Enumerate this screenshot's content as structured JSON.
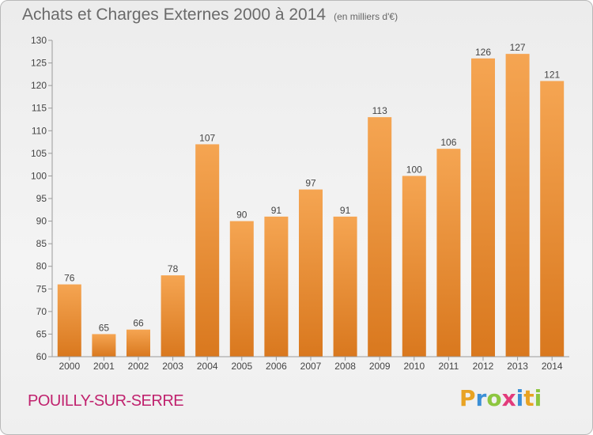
{
  "header": {
    "title": "Achats et Charges Externes 2000 à 2014",
    "subtitle": "(en milliers d'€)"
  },
  "footer": {
    "commune": "POUILLY-SUR-SERRE",
    "logo_letters": [
      "P",
      "r",
      "o",
      "x",
      "i",
      "t",
      "i"
    ]
  },
  "colors": {
    "bar_top": "#f5a552",
    "bar_bottom": "#d9781e",
    "axis": "#9a9a9a",
    "commune": "#c0226e"
  },
  "chart_data": {
    "type": "bar",
    "title": "Achats et Charges Externes 2000 à 2014",
    "subtitle": "(en milliers d'€)",
    "categories": [
      "2000",
      "2001",
      "2002",
      "2003",
      "2004",
      "2005",
      "2006",
      "2007",
      "2008",
      "2009",
      "2010",
      "2011",
      "2012",
      "2013",
      "2014"
    ],
    "values": [
      76,
      65,
      66,
      78,
      107,
      90,
      91,
      97,
      91,
      113,
      100,
      106,
      126,
      127,
      121
    ],
    "ylim": [
      60,
      130
    ],
    "yticks": [
      60,
      65,
      70,
      75,
      80,
      85,
      90,
      95,
      100,
      105,
      110,
      115,
      120,
      125,
      130
    ],
    "grid": false,
    "data_labels": true
  }
}
